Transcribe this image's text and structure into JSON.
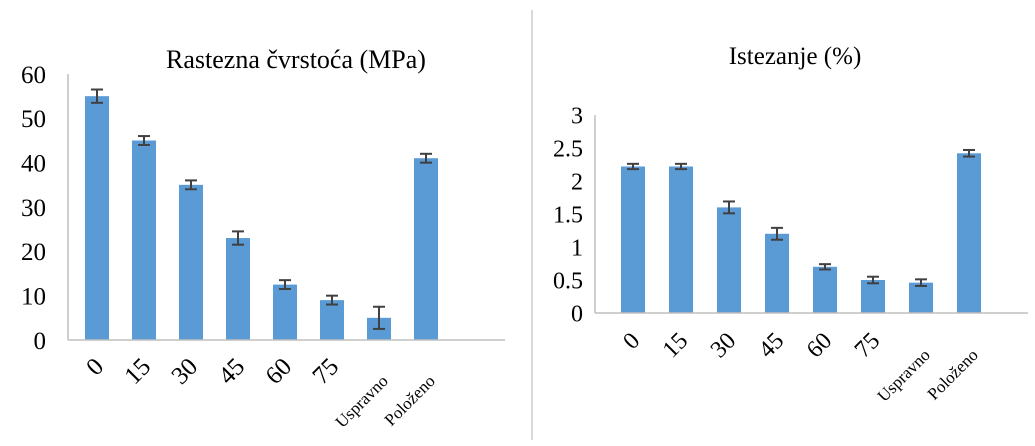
{
  "chart_data": [
    {
      "type": "bar",
      "title": "Rastezna čvrstoća (MPa)",
      "categories": [
        "0",
        "15",
        "30",
        "45",
        "60",
        "75",
        "Uspravno",
        "Položeno"
      ],
      "values": [
        55,
        45,
        35,
        23,
        12.5,
        9,
        5,
        41
      ],
      "errors": [
        1.5,
        1,
        1,
        1.5,
        1,
        1,
        2.5,
        1
      ],
      "ylim": [
        0,
        60
      ],
      "yticks": [
        0,
        10,
        20,
        30,
        40,
        50,
        60
      ],
      "xlabel": "",
      "ylabel": "",
      "grid": false,
      "bar_color": "#5b9bd5"
    },
    {
      "type": "bar",
      "title": "Istezanje (%)",
      "categories": [
        "0",
        "15",
        "30",
        "45",
        "60",
        "75",
        "Uspravno",
        "Položeno"
      ],
      "values": [
        2.22,
        2.22,
        1.6,
        1.2,
        0.7,
        0.5,
        0.46,
        2.42
      ],
      "errors": [
        0.04,
        0.04,
        0.09,
        0.09,
        0.04,
        0.05,
        0.05,
        0.05
      ],
      "ylim": [
        0,
        3
      ],
      "yticks": [
        0,
        0.5,
        1,
        1.5,
        2,
        2.5,
        3
      ],
      "ytick_labels": [
        "0",
        "0.5",
        "1",
        "1.5",
        "2",
        "2.5",
        "3"
      ],
      "xlabel": "",
      "ylabel": "",
      "grid": false,
      "bar_color": "#5b9bd5"
    }
  ]
}
